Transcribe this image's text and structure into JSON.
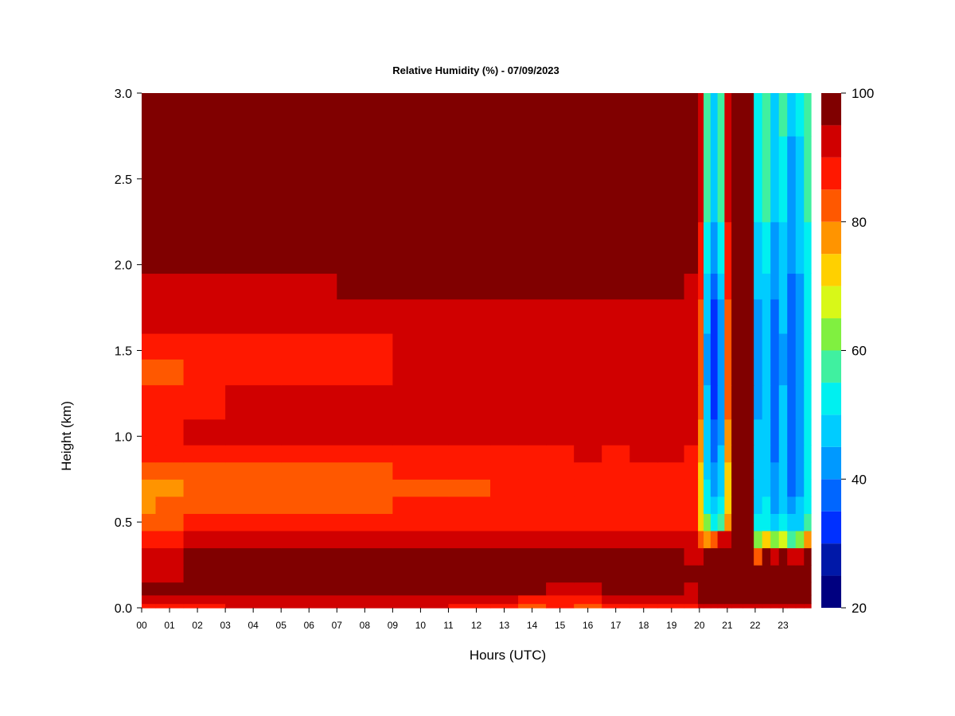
{
  "chart_data": {
    "type": "heatmap",
    "title": "Relative Humidity (%) - 07/09/2023",
    "xlabel": "Hours (UTC)",
    "ylabel": "Height (km)",
    "xlim": [
      0,
      24
    ],
    "ylim": [
      0,
      3
    ],
    "x_ticks": [
      "00",
      "01",
      "02",
      "03",
      "04",
      "05",
      "06",
      "07",
      "08",
      "09",
      "10",
      "11",
      "12",
      "13",
      "14",
      "15",
      "16",
      "17",
      "18",
      "19",
      "20",
      "21",
      "22",
      "23"
    ],
    "y_ticks": [
      "0.0",
      "0.5",
      "1.0",
      "1.5",
      "2.0",
      "2.5",
      "3.0"
    ],
    "colorbar": {
      "min": 20,
      "max": 100,
      "ticks": [
        "20",
        "40",
        "60",
        "80",
        "100"
      ],
      "levels": [
        20,
        25,
        30,
        35,
        40,
        45,
        50,
        55,
        60,
        65,
        70,
        75,
        80,
        85,
        90,
        95,
        100
      ],
      "colors": [
        "#000080",
        "#0018a8",
        "#0030ff",
        "#0066ff",
        "#0099ff",
        "#00ccff",
        "#00f0f0",
        "#40f0a0",
        "#80f040",
        "#d8f818",
        "#ffd000",
        "#ff9400",
        "#ff5800",
        "#ff1800",
        "#d00000",
        "#800000"
      ]
    },
    "height_km": [
      0.0,
      0.05,
      0.1,
      0.2,
      0.3,
      0.4,
      0.5,
      0.6,
      0.7,
      0.8,
      0.9,
      1.0,
      1.2,
      1.4,
      1.5,
      1.7,
      1.9,
      2.0,
      2.5,
      3.0
    ],
    "hours_utc": [
      0,
      1,
      2,
      4,
      6,
      8,
      10,
      12,
      13,
      14,
      15,
      16,
      17,
      18,
      19,
      19.9,
      20.0,
      20.3,
      20.5,
      20.8,
      21.0,
      21.3,
      21.8,
      22.1,
      22.4,
      22.7,
      23.0,
      23.3,
      23.6,
      23.9
    ],
    "rh_percent": [
      [
        87,
        86,
        88,
        90,
        90,
        91,
        90,
        88,
        85,
        84,
        85,
        84,
        86,
        86,
        86,
        87,
        92,
        93,
        94,
        93,
        93,
        93,
        93,
        92,
        92,
        92,
        92,
        92,
        92,
        92
      ],
      [
        92,
        92,
        93,
        93,
        93,
        94,
        94,
        93,
        91,
        89,
        89,
        89,
        91,
        91,
        90,
        90,
        95,
        96,
        96,
        96,
        96,
        96,
        96,
        95,
        95,
        96,
        96,
        96,
        96,
        96
      ],
      [
        95,
        95,
        96,
        97,
        98,
        98,
        98,
        97,
        96,
        95,
        94,
        94,
        95,
        95,
        95,
        94,
        97,
        98,
        98,
        98,
        98,
        98,
        98,
        97,
        97,
        97,
        97,
        97,
        97,
        97
      ],
      [
        94,
        94,
        97,
        98,
        98,
        98,
        98,
        98,
        97,
        97,
        96,
        96,
        96,
        97,
        96,
        95,
        98,
        99,
        99,
        99,
        98,
        99,
        98,
        97,
        97,
        96,
        96,
        96,
        96,
        96
      ],
      [
        92,
        93,
        96,
        97,
        97,
        98,
        97,
        97,
        96,
        96,
        95,
        95,
        95,
        96,
        95,
        94,
        90,
        97,
        98,
        98,
        97,
        97,
        97,
        80,
        95,
        90,
        95,
        92,
        90,
        95
      ],
      [
        88,
        89,
        91,
        92,
        92,
        93,
        93,
        93,
        93,
        93,
        93,
        93,
        93,
        94,
        94,
        93,
        80,
        78,
        80,
        90,
        92,
        96,
        97,
        60,
        70,
        60,
        65,
        55,
        60,
        75
      ],
      [
        82,
        83,
        85,
        86,
        86,
        87,
        88,
        88,
        88,
        89,
        88,
        88,
        88,
        89,
        89,
        88,
        72,
        60,
        52,
        58,
        75,
        96,
        97,
        50,
        52,
        45,
        50,
        45,
        48,
        55
      ],
      [
        79,
        80,
        82,
        83,
        82,
        83,
        85,
        85,
        86,
        86,
        86,
        87,
        86,
        87,
        87,
        86,
        70,
        52,
        45,
        50,
        70,
        96,
        97,
        48,
        50,
        42,
        48,
        40,
        45,
        52
      ],
      [
        78,
        79,
        81,
        82,
        81,
        82,
        84,
        84,
        85,
        85,
        85,
        86,
        85,
        86,
        86,
        85,
        70,
        50,
        42,
        48,
        70,
        96,
        97,
        47,
        49,
        40,
        47,
        39,
        44,
        52
      ],
      [
        80,
        81,
        83,
        84,
        84,
        84,
        85,
        85,
        86,
        86,
        86,
        87,
        86,
        87,
        87,
        86,
        72,
        48,
        40,
        46,
        72,
        96,
        97,
        46,
        49,
        40,
        47,
        39,
        44,
        52
      ],
      [
        86,
        86,
        88,
        89,
        89,
        89,
        89,
        89,
        89,
        89,
        89,
        90,
        89,
        90,
        90,
        89,
        75,
        47,
        38,
        45,
        75,
        96,
        97,
        46,
        48,
        39,
        46,
        38,
        43,
        51
      ],
      [
        88,
        88,
        90,
        91,
        91,
        92,
        92,
        92,
        92,
        92,
        92,
        92,
        92,
        92,
        92,
        91,
        78,
        46,
        37,
        44,
        78,
        96,
        97,
        45,
        48,
        39,
        46,
        38,
        43,
        51
      ],
      [
        87,
        87,
        89,
        90,
        91,
        92,
        93,
        93,
        93,
        93,
        93,
        93,
        93,
        93,
        93,
        92,
        80,
        45,
        34,
        42,
        80,
        96,
        97,
        44,
        47,
        38,
        45,
        37,
        42,
        50
      ],
      [
        84,
        84,
        85,
        86,
        87,
        89,
        91,
        92,
        93,
        93,
        93,
        93,
        93,
        93,
        93,
        92,
        82,
        44,
        32,
        41,
        82,
        96,
        97,
        43,
        46,
        37,
        44,
        36,
        41,
        50
      ],
      [
        85,
        85,
        86,
        87,
        88,
        89,
        91,
        92,
        93,
        93,
        93,
        93,
        93,
        93,
        93,
        92,
        82,
        44,
        31,
        40,
        82,
        96,
        97,
        43,
        46,
        37,
        44,
        36,
        41,
        50
      ],
      [
        92,
        92,
        93,
        93,
        93,
        94,
        94,
        94,
        94,
        94,
        94,
        94,
        94,
        94,
        94,
        93,
        84,
        45,
        33,
        42,
        84,
        96,
        97,
        44,
        47,
        38,
        45,
        37,
        42,
        51
      ],
      [
        94,
        94,
        94,
        94,
        94,
        95,
        95,
        95,
        95,
        95,
        95,
        95,
        95,
        95,
        95,
        94,
        86,
        48,
        38,
        46,
        86,
        97,
        97,
        45,
        48,
        40,
        46,
        38,
        43,
        52
      ],
      [
        97,
        97,
        97,
        97,
        97,
        97,
        97,
        97,
        97,
        97,
        97,
        97,
        97,
        97,
        97,
        96,
        88,
        50,
        42,
        50,
        88,
        97,
        97,
        47,
        50,
        42,
        48,
        40,
        45,
        53
      ],
      [
        98,
        98,
        98,
        98,
        98,
        98,
        98,
        98,
        98,
        98,
        98,
        98,
        98,
        98,
        98,
        97,
        90,
        55,
        45,
        55,
        90,
        98,
        98,
        50,
        55,
        45,
        52,
        43,
        48,
        55
      ],
      [
        98,
        98,
        98,
        98,
        98,
        98,
        98,
        98,
        98,
        98,
        98,
        98,
        98,
        98,
        98,
        97,
        92,
        58,
        47,
        58,
        92,
        98,
        98,
        52,
        58,
        47,
        55,
        45,
        50,
        57
      ]
    ]
  }
}
